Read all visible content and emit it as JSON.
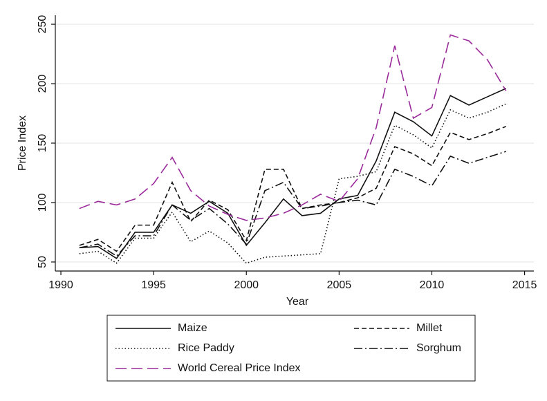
{
  "chart_data": {
    "type": "line",
    "x_label": "Year",
    "y_label": "Price Index",
    "x": [
      1991,
      1992,
      1993,
      1994,
      1995,
      1996,
      1997,
      1998,
      1999,
      2000,
      2001,
      2002,
      2003,
      2004,
      2005,
      2006,
      2007,
      2008,
      2009,
      2010,
      2011,
      2012,
      2013,
      2014
    ],
    "series": [
      {
        "name": "Maize",
        "color": "#111111",
        "dash": "none",
        "values": [
          62,
          63,
          53,
          75,
          75,
          98,
          91,
          101,
          91,
          64,
          83,
          103,
          89,
          91,
          103,
          106,
          135,
          176,
          168,
          156,
          190,
          182,
          189,
          196
        ]
      },
      {
        "name": "Millet",
        "color": "#111111",
        "dash": "7,4",
        "values": [
          64,
          69,
          59,
          81,
          81,
          117,
          84,
          102,
          94,
          68,
          128,
          128,
          95,
          98,
          100,
          104,
          112,
          147,
          141,
          131,
          159,
          153,
          158,
          164
        ]
      },
      {
        "name": "Rice Paddy",
        "color": "#111111",
        "dash": "1.5,3",
        "values": [
          57,
          59,
          49,
          70,
          70,
          92,
          67,
          76,
          66,
          49,
          54,
          55,
          56,
          57,
          120,
          122,
          126,
          165,
          157,
          146,
          178,
          171,
          176,
          183
        ]
      },
      {
        "name": "Sorghum",
        "color": "#111111",
        "dash": "12,4,2,4",
        "values": [
          62,
          65,
          55,
          72,
          72,
          98,
          85,
          95,
          82,
          65,
          110,
          117,
          95,
          97,
          100,
          102,
          98,
          128,
          122,
          114,
          139,
          133,
          138,
          143
        ]
      },
      {
        "name": "World Cereal Price Index",
        "color": "#9a2a9a",
        "dash": "16,7",
        "values": [
          95,
          101,
          98,
          103,
          116,
          138,
          110,
          97,
          90,
          85,
          87,
          91,
          98,
          107,
          101,
          120,
          163,
          232,
          171,
          180,
          241,
          236,
          220,
          194
        ]
      }
    ],
    "xlim": [
      1989.7,
      2015.5
    ],
    "xticks": [
      1990,
      1995,
      2000,
      2005,
      2010,
      2015
    ],
    "ylim": [
      42.4,
      257.6
    ],
    "yticks": [
      50,
      100,
      150,
      200,
      250
    ],
    "grid": true
  }
}
